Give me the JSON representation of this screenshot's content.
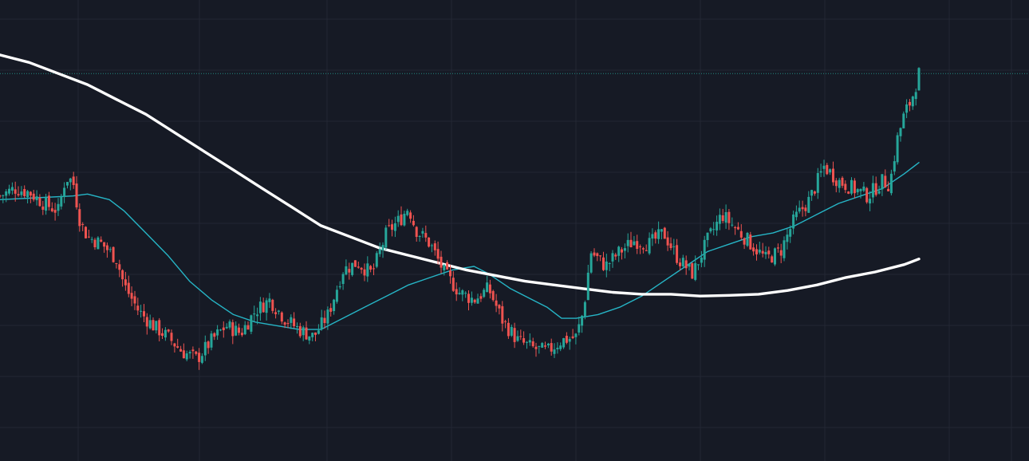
{
  "colors": {
    "background": "#161a25",
    "grid": "#232734",
    "bull": "#26a69a",
    "bear": "#ef5350",
    "ma_long": "#ffffff",
    "ma_short": "#26b5c6",
    "price_line": "#26a69a"
  },
  "chart_data": {
    "type": "candlestick",
    "title": "",
    "xlabel": "",
    "ylabel": "",
    "grid": true,
    "legend": "none",
    "y_axis_labels_visible": false,
    "x_axis_labels_visible": false,
    "x_range": [
      0,
      126
    ],
    "y_range": [
      0,
      100
    ],
    "last_price_line": 92,
    "close_waypoints": [
      [
        0,
        59
      ],
      [
        2,
        61
      ],
      [
        4,
        60
      ],
      [
        6,
        57
      ],
      [
        8,
        55
      ],
      [
        9,
        64
      ],
      [
        10,
        63
      ],
      [
        11,
        52
      ],
      [
        12,
        48
      ],
      [
        14,
        46
      ],
      [
        16,
        42
      ],
      [
        17,
        35
      ],
      [
        19,
        28
      ],
      [
        21,
        24
      ],
      [
        23,
        21
      ],
      [
        25,
        17
      ],
      [
        27,
        15
      ],
      [
        29,
        20
      ],
      [
        31,
        24
      ],
      [
        33,
        22
      ],
      [
        35,
        28
      ],
      [
        37,
        31
      ],
      [
        39,
        26
      ],
      [
        41,
        23
      ],
      [
        43,
        21
      ],
      [
        45,
        27
      ],
      [
        47,
        39
      ],
      [
        49,
        41
      ],
      [
        51,
        38
      ],
      [
        53,
        49
      ],
      [
        55,
        53
      ],
      [
        56,
        56
      ],
      [
        57,
        50
      ],
      [
        59,
        46
      ],
      [
        61,
        38
      ],
      [
        63,
        33
      ],
      [
        65,
        31
      ],
      [
        67,
        34
      ],
      [
        69,
        25
      ],
      [
        71,
        20
      ],
      [
        73,
        18
      ],
      [
        75,
        17
      ],
      [
        77,
        20
      ],
      [
        79,
        21
      ],
      [
        80,
        28
      ],
      [
        81,
        44
      ],
      [
        83,
        40
      ],
      [
        85,
        44
      ],
      [
        87,
        47
      ],
      [
        89,
        46
      ],
      [
        91,
        49
      ],
      [
        93,
        42
      ],
      [
        95,
        38
      ],
      [
        97,
        47
      ],
      [
        99,
        54
      ],
      [
        101,
        50
      ],
      [
        103,
        46
      ],
      [
        105,
        42
      ],
      [
        107,
        44
      ],
      [
        109,
        53
      ],
      [
        111,
        58
      ],
      [
        113,
        67
      ],
      [
        115,
        63
      ],
      [
        117,
        61
      ],
      [
        119,
        59
      ],
      [
        121,
        63
      ],
      [
        122,
        62
      ],
      [
        123,
        74
      ],
      [
        124,
        81
      ],
      [
        125,
        85
      ],
      [
        126,
        92
      ]
    ],
    "series": [
      {
        "kind": "moving_average_short",
        "points": [
          [
            0,
            58
          ],
          [
            5,
            58.5
          ],
          [
            10,
            59
          ],
          [
            12,
            59.5
          ],
          [
            15,
            58
          ],
          [
            17,
            55
          ],
          [
            20,
            49
          ],
          [
            23,
            43
          ],
          [
            26,
            36
          ],
          [
            29,
            31
          ],
          [
            32,
            27
          ],
          [
            35,
            25
          ],
          [
            38,
            24
          ],
          [
            41,
            23
          ],
          [
            44,
            23
          ],
          [
            47,
            26
          ],
          [
            50,
            29
          ],
          [
            53,
            32
          ],
          [
            56,
            35
          ],
          [
            59,
            37
          ],
          [
            62,
            39
          ],
          [
            65,
            40
          ],
          [
            67,
            38
          ],
          [
            70,
            34
          ],
          [
            73,
            31
          ],
          [
            75,
            29
          ],
          [
            77,
            26
          ],
          [
            79,
            26
          ],
          [
            82,
            27
          ],
          [
            85,
            29
          ],
          [
            88,
            32
          ],
          [
            91,
            36
          ],
          [
            94,
            40
          ],
          [
            97,
            44
          ],
          [
            100,
            46
          ],
          [
            103,
            48
          ],
          [
            106,
            49
          ],
          [
            109,
            51
          ],
          [
            112,
            54
          ],
          [
            115,
            57
          ],
          [
            118,
            59
          ],
          [
            121,
            61
          ],
          [
            124,
            65
          ],
          [
            126,
            68
          ]
        ]
      },
      {
        "kind": "moving_average_long",
        "points": [
          [
            0,
            97
          ],
          [
            4,
            95
          ],
          [
            8,
            92
          ],
          [
            12,
            89
          ],
          [
            16,
            85
          ],
          [
            20,
            81
          ],
          [
            24,
            76
          ],
          [
            28,
            71
          ],
          [
            32,
            66
          ],
          [
            36,
            61
          ],
          [
            40,
            56
          ],
          [
            44,
            51
          ],
          [
            48,
            48
          ],
          [
            52,
            45
          ],
          [
            56,
            43
          ],
          [
            60,
            41
          ],
          [
            64,
            39
          ],
          [
            68,
            37.5
          ],
          [
            72,
            36
          ],
          [
            76,
            35
          ],
          [
            80,
            34
          ],
          [
            84,
            33
          ],
          [
            88,
            32.5
          ],
          [
            92,
            32.5
          ],
          [
            96,
            32
          ],
          [
            100,
            32.2
          ],
          [
            104,
            32.5
          ],
          [
            108,
            33.5
          ],
          [
            112,
            35
          ],
          [
            116,
            37
          ],
          [
            120,
            38.5
          ],
          [
            124,
            40.5
          ],
          [
            126,
            42
          ]
        ]
      }
    ]
  }
}
